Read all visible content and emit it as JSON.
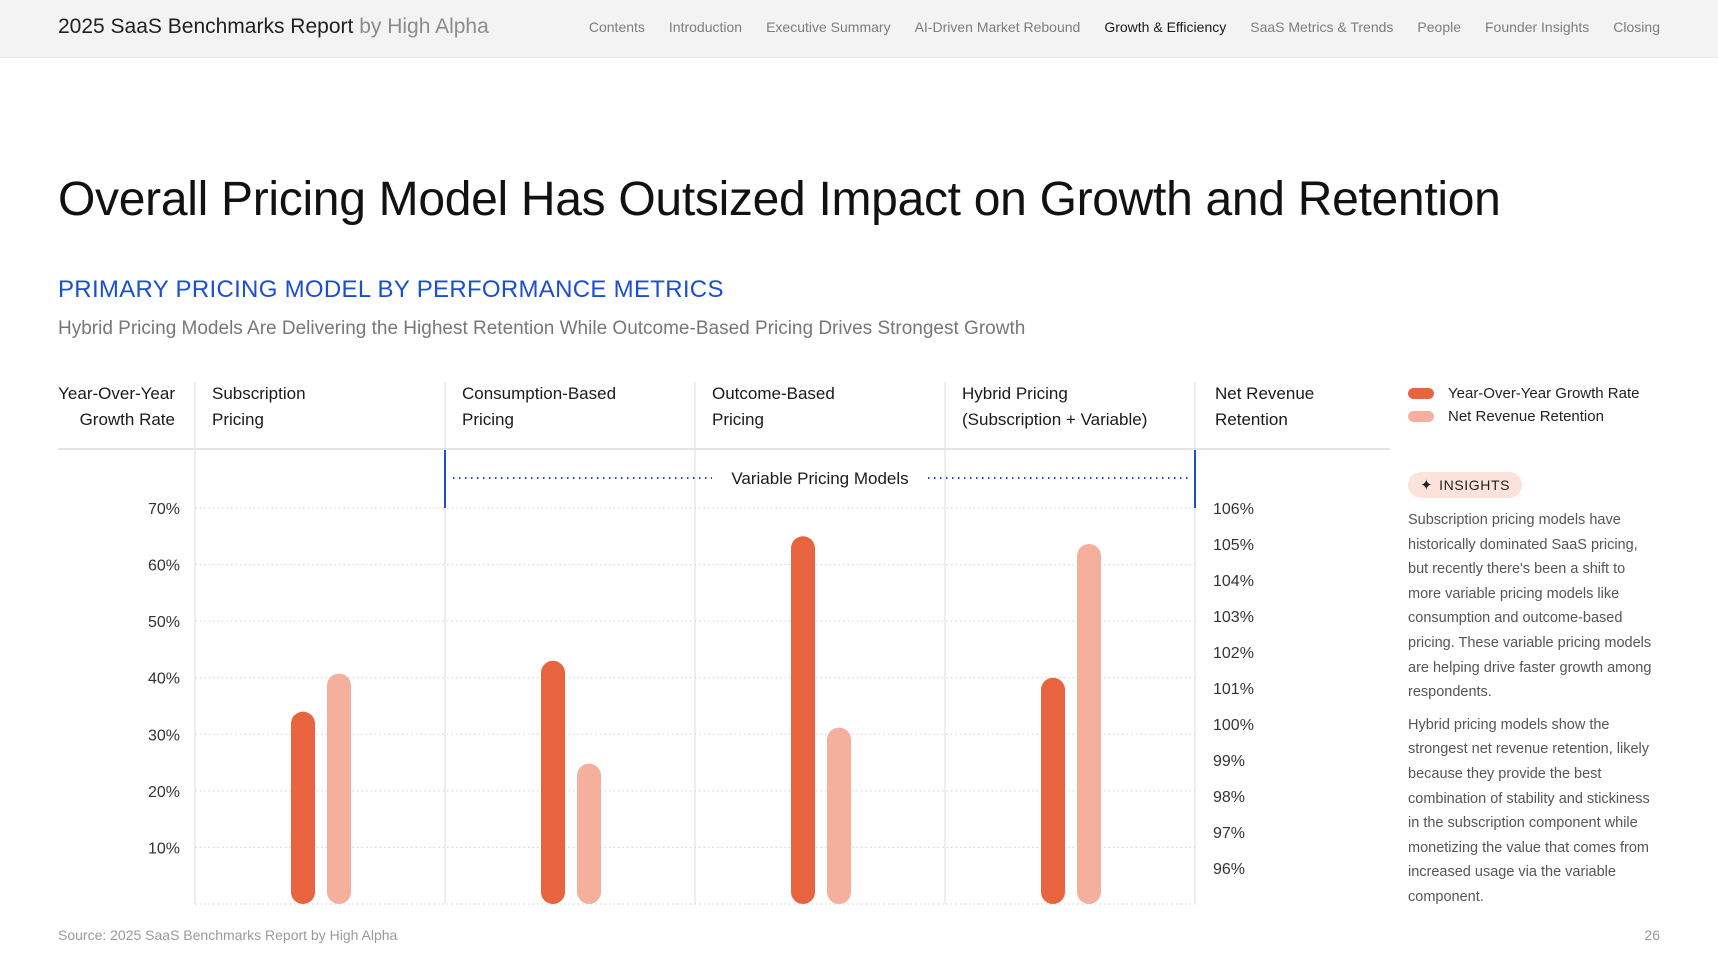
{
  "header": {
    "brand": "2025 SaaS Benchmarks Report",
    "brand_by": "by High Alpha",
    "nav": [
      {
        "label": "Contents",
        "active": false
      },
      {
        "label": "Introduction",
        "active": false
      },
      {
        "label": "Executive Summary",
        "active": false
      },
      {
        "label": "AI-Driven Market Rebound",
        "active": false
      },
      {
        "label": "Growth & Efficiency",
        "active": true
      },
      {
        "label": "SaaS Metrics & Trends",
        "active": false
      },
      {
        "label": "People",
        "active": false
      },
      {
        "label": "Founder Insights",
        "active": false
      },
      {
        "label": "Closing",
        "active": false
      }
    ]
  },
  "page": {
    "title": "Overall Pricing Model Has Outsized Impact on Growth and Retention",
    "section_title": "PRIMARY PRICING MODEL BY PERFORMANCE METRICS",
    "subtitle": "Hybrid Pricing Models Are Delivering the Highest Retention While Outcome-Based Pricing Drives Strongest Growth",
    "source": "Source: 2025 SaaS Benchmarks Report by High Alpha",
    "page_number": "26"
  },
  "insights": {
    "badge": "INSIGHTS",
    "paragraphs": [
      "Subscription pricing models have historically dominated SaaS pricing, but recently there's been a shift to more variable pricing models like consumption and outcome-based pricing. These variable pricing models are helping drive faster growth among respondents.",
      "Hybrid pricing models show the strongest net revenue retention, likely because they provide the best combination of stability and stickiness in the subscription component while monetizing the value that comes from increased usage via the variable component."
    ]
  },
  "colors": {
    "growth": "#e8643f",
    "nrr": "#f4b09c",
    "accent_blue": "#1b4fd1"
  },
  "chart_data": {
    "type": "bar",
    "left_axis_title": [
      "Year-Over-Year",
      "Growth Rate"
    ],
    "right_axis_title": [
      "Net Revenue",
      "Retention"
    ],
    "categories": [
      [
        "Subscription",
        "Pricing"
      ],
      [
        "Consumption-Based",
        "Pricing"
      ],
      [
        "Outcome-Based",
        "Pricing"
      ],
      [
        "Hybrid Pricing",
        "(Subscription + Variable)"
      ]
    ],
    "group_annotation": {
      "label": "Variable Pricing Models",
      "spans_categories": [
        1,
        3
      ]
    },
    "left_ticks": [
      "70%",
      "60%",
      "50%",
      "40%",
      "30%",
      "20%",
      "10%"
    ],
    "right_ticks": [
      "106%",
      "105%",
      "104%",
      "103%",
      "102%",
      "101%",
      "100%",
      "99%",
      "98%",
      "97%",
      "96%"
    ],
    "ylim_left": [
      0,
      70
    ],
    "ylim_right": [
      95,
      106
    ],
    "grid": true,
    "legend_position": "right",
    "series": [
      {
        "name": "Year-Over-Year Growth Rate",
        "axis": "left",
        "color": "#e8643f",
        "values": [
          34,
          43,
          65,
          40
        ]
      },
      {
        "name": "Net Revenue Retention",
        "axis": "right",
        "color": "#f4b09c",
        "values": [
          101.4,
          98.9,
          99.9,
          105.0
        ]
      }
    ]
  }
}
